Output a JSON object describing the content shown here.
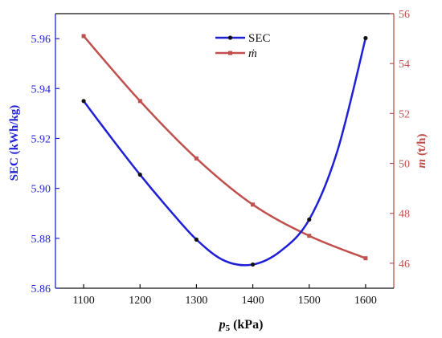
{
  "chart_data": {
    "type": "line",
    "x": [
      1100,
      1200,
      1300,
      1400,
      1500,
      1600
    ],
    "xlim": [
      1050,
      1650
    ],
    "xticks": [
      "1100",
      "1200",
      "1300",
      "1400",
      "1500",
      "1600"
    ],
    "xlabel_main": "p",
    "xlabel_sub": "5",
    "xlabel_unit": " (kPa)",
    "y_left": {
      "label": "SEC (kWh/kg)",
      "lim": [
        5.86,
        5.97
      ],
      "ticks": [
        "5.86",
        "5.88",
        "5.90",
        "5.92",
        "5.94",
        "5.96"
      ],
      "color": "#1f1fd6"
    },
    "y_right": {
      "label_sym": "m",
      "label_unit": " (t/h)",
      "lim": [
        45,
        56
      ],
      "ticks": [
        "46",
        "48",
        "50",
        "52",
        "54",
        "56"
      ],
      "color": "#c0504d"
    },
    "series": [
      {
        "name": "SEC",
        "axis": "left",
        "color": "#1f1fd6",
        "marker_color": "#111111",
        "values": [
          5.935,
          5.9055,
          5.8795,
          5.8695,
          5.8875,
          5.9602
        ],
        "smooth": [
          [
            1100,
            5.935
          ],
          [
            1150,
            5.92
          ],
          [
            1200,
            5.9055
          ],
          [
            1250,
            5.892
          ],
          [
            1300,
            5.8795
          ],
          [
            1350,
            5.871
          ],
          [
            1400,
            5.8695
          ],
          [
            1450,
            5.875
          ],
          [
            1500,
            5.8875
          ],
          [
            1550,
            5.915
          ],
          [
            1600,
            5.9602
          ]
        ]
      },
      {
        "name": "ṁ",
        "axis": "right",
        "color": "#c0504d",
        "marker_color": "#c0504d",
        "values": [
          55.1,
          52.5,
          50.2,
          48.35,
          47.1,
          46.2
        ]
      }
    ],
    "legend_position": "top-center"
  }
}
